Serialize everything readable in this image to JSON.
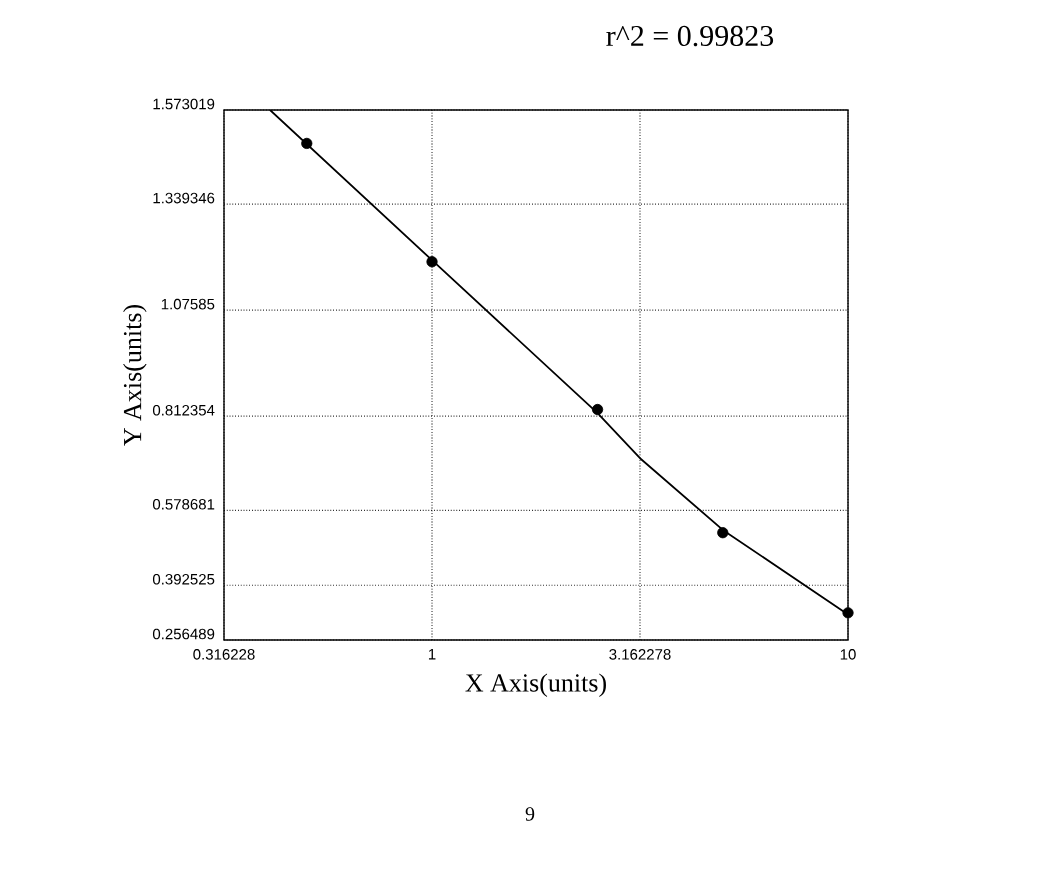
{
  "chart_data": {
    "type": "scatter",
    "title": "r^2 = 0.99823",
    "xlabel": "X Axis(units)",
    "ylabel": "Y Axis(units)",
    "log": "x",
    "grid": true,
    "marker": "circle",
    "xlim": [
      0.316228,
      10
    ],
    "xticks": [
      0.316228,
      1,
      3.162278,
      10
    ],
    "ylim": [
      0.256489,
      1.573019
    ],
    "yticks": [
      0.256489,
      0.392525,
      0.578681,
      0.812354,
      1.07585,
      1.339346,
      1.573019
    ],
    "series": [
      {
        "color": "#000000",
        "x": [
          0.5,
          1,
          2.5,
          5,
          10
        ],
        "values": [
          1.49,
          1.196,
          0.829,
          0.523,
          0.324
        ]
      },
      {
        "type": "line",
        "color": "#000000",
        "marker": "none",
        "x": [
          0.408,
          1,
          2.5,
          3.162278,
          5,
          10
        ],
        "values": [
          1.573,
          1.2,
          0.82,
          0.708,
          0.53,
          0.32
        ]
      }
    ],
    "annotations": [
      "9"
    ]
  }
}
